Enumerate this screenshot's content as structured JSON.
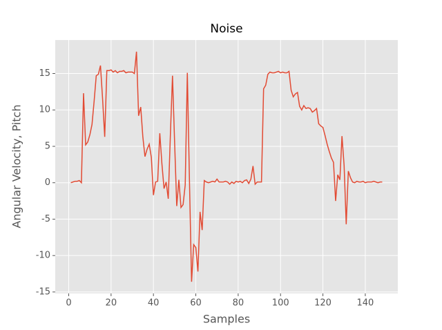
{
  "chart_data": {
    "type": "line",
    "title": "Noise",
    "x_label": "Samples",
    "y_label": "Angular Velocity, Pitch",
    "x": [
      1,
      2,
      3,
      4,
      5,
      6,
      7,
      8,
      9,
      10,
      11,
      12,
      13,
      14,
      15,
      16,
      17,
      18,
      19,
      20,
      21,
      22,
      23,
      24,
      25,
      26,
      27,
      28,
      29,
      30,
      31,
      32,
      33,
      34,
      35,
      36,
      37,
      38,
      39,
      40,
      41,
      42,
      43,
      44,
      45,
      46,
      47,
      48,
      49,
      50,
      51,
      52,
      53,
      54,
      55,
      56,
      57,
      58,
      59,
      60,
      61,
      62,
      63,
      64,
      65,
      66,
      67,
      68,
      69,
      70,
      71,
      72,
      73,
      74,
      75,
      76,
      77,
      78,
      79,
      80,
      81,
      82,
      83,
      84,
      85,
      86,
      87,
      88,
      89,
      90,
      91,
      92,
      93,
      94,
      95,
      96,
      97,
      98,
      99,
      100,
      101,
      102,
      103,
      104,
      105,
      106,
      107,
      108,
      109,
      110,
      111,
      112,
      113,
      114,
      115,
      116,
      117,
      118,
      119,
      120,
      121,
      122,
      123,
      124,
      125,
      126,
      127,
      128,
      129,
      130,
      131,
      132,
      133,
      134,
      135,
      136,
      137,
      138,
      139,
      140,
      141,
      142,
      143,
      144,
      145,
      146,
      147,
      148
    ],
    "series": [
      {
        "name": "Pitch",
        "color": "#e24a33",
        "values": [
          0,
          0.1,
          0.2,
          0.2,
          0.3,
          0,
          12.3,
          5.2,
          5.6,
          6.6,
          8,
          11.2,
          14.7,
          14.9,
          16.1,
          11.5,
          6.3,
          15.4,
          15.4,
          15.5,
          15.2,
          15.4,
          15.1,
          15.3,
          15.3,
          15.4,
          15.1,
          15.2,
          15.2,
          15.2,
          15.0,
          18.0,
          9.2,
          10.4,
          6.3,
          3.6,
          4.6,
          5.3,
          3.5,
          -1.7,
          0.1,
          0.2,
          6.8,
          2.6,
          -0.8,
          0.1,
          -2.2,
          6.6,
          14.7,
          5.5,
          -3.2,
          0.4,
          -3.4,
          -3.0,
          -0.3,
          15.1,
          0.3,
          -13.6,
          -8.5,
          -8.9,
          -12.2,
          -4,
          -6.5,
          0.3,
          0.1,
          0,
          0.1,
          0.2,
          0.1,
          0.5,
          0.1,
          0.1,
          0.1,
          0.2,
          0.1,
          -0.2,
          0.1,
          -0.1,
          0.2,
          0.1,
          0.2,
          0,
          0.3,
          0.4,
          -0.1,
          0.5,
          2.3,
          -0.2,
          0.1,
          0.1,
          0.1,
          12.9,
          13.4,
          14.9,
          15.2,
          15.1,
          15.1,
          15.2,
          15.3,
          15.1,
          15.2,
          15.1,
          15.1,
          15.3,
          12.7,
          11.8,
          12.2,
          12.4,
          10.5,
          10.0,
          10.6,
          10.2,
          10.3,
          10.2,
          9.7,
          9.9,
          10.2,
          8.1,
          7.8,
          7.6,
          6.5,
          5.3,
          4.3,
          3.4,
          2.8,
          -2.5,
          1.1,
          0.4,
          6.4,
          2.4,
          -5.7,
          1.6,
          0.7,
          0.1,
          0,
          0.2,
          0.1,
          0.1,
          0.2,
          0,
          0.1,
          0.1,
          0.1,
          0.2,
          0.1,
          0,
          0.1,
          0.1
        ]
      }
    ],
    "xlim": [
      -6.35,
      155.35
    ],
    "ylim": [
      -15.2,
      19.6
    ],
    "xticks": [
      0,
      20,
      40,
      60,
      80,
      100,
      120,
      140
    ],
    "yticks": [
      -15,
      -10,
      -5,
      0,
      5,
      10,
      15
    ],
    "grid": true
  }
}
